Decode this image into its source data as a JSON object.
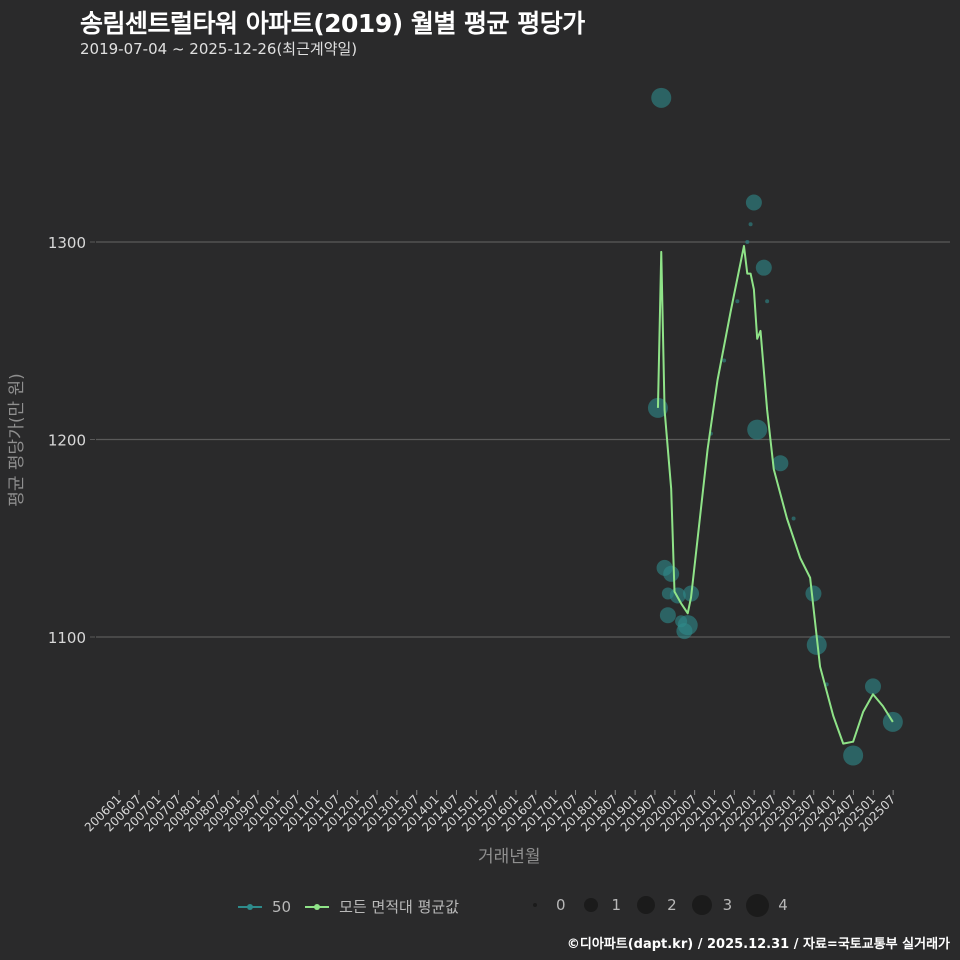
{
  "header": {
    "title": "송림센트럴타워 아파트(2019) 월별 평균 평당가",
    "subtitle": "2019-07-04 ~ 2025-12-26(최근계약일)"
  },
  "axes": {
    "ylabel": "평균 평당가(만 원)",
    "xlabel": "거래년월"
  },
  "legend": {
    "series": [
      {
        "label": "50",
        "color": "#2e8b8b"
      },
      {
        "label": "모든 면적대 평균값",
        "color": "#8fe388"
      }
    ],
    "sizes": [
      "0",
      "1",
      "2",
      "3",
      "4"
    ]
  },
  "footer": "©디아파트(dapt.kr) / 2025.12.31 / 자료=국토교통부 실거래가",
  "colors": {
    "background": "#2a2a2b",
    "grid": "#5a5a5a",
    "series_50": "#2e8b8b",
    "average_line": "#8fe388"
  },
  "chart_data": {
    "type": "scatter",
    "title": "송림센트럴타워 아파트(2019) 월별 평균 평당가",
    "subtitle": "2019-07-04 ~ 2025-12-26(최근계약일)",
    "xlabel": "거래년월",
    "ylabel": "평균 평당가(만 원)",
    "ylim": [
      1020,
      1385
    ],
    "yticks": [
      1100,
      1200,
      1300
    ],
    "grid": "horizontal",
    "legend_position": "bottom",
    "x_ticks": [
      "200601",
      "200607",
      "200701",
      "200707",
      "200801",
      "200807",
      "200901",
      "200907",
      "201001",
      "201007",
      "201101",
      "201107",
      "201201",
      "201207",
      "201301",
      "201307",
      "201401",
      "201407",
      "201501",
      "201507",
      "201601",
      "201607",
      "201701",
      "201707",
      "201801",
      "201807",
      "201901",
      "201907",
      "202001",
      "202007",
      "202101",
      "202107",
      "202201",
      "202207",
      "202301",
      "202307",
      "202401",
      "202407",
      "202501",
      "202507"
    ],
    "series": [
      {
        "name": "50",
        "kind": "bubble",
        "points": [
          {
            "x": "201907",
            "y": 1216,
            "size": 3
          },
          {
            "x": "201908",
            "y": 1373,
            "size": 3
          },
          {
            "x": "201909",
            "y": 1135,
            "size": 2
          },
          {
            "x": "201910",
            "y": 1122,
            "size": 1
          },
          {
            "x": "201910",
            "y": 1111,
            "size": 2
          },
          {
            "x": "201911",
            "y": 1132,
            "size": 2
          },
          {
            "x": "202001",
            "y": 1121,
            "size": 2
          },
          {
            "x": "202002",
            "y": 1108,
            "size": 1
          },
          {
            "x": "202003",
            "y": 1103,
            "size": 2
          },
          {
            "x": "202004",
            "y": 1106,
            "size": 3
          },
          {
            "x": "202005",
            "y": 1122,
            "size": 2
          },
          {
            "x": "202011",
            "y": 1203,
            "size": 0
          },
          {
            "x": "202103",
            "y": 1240,
            "size": 0
          },
          {
            "x": "202107",
            "y": 1270,
            "size": 0
          },
          {
            "x": "202110",
            "y": 1300,
            "size": 0
          },
          {
            "x": "202111",
            "y": 1309,
            "size": 0
          },
          {
            "x": "202112",
            "y": 1320,
            "size": 2
          },
          {
            "x": "202201",
            "y": 1205,
            "size": 3
          },
          {
            "x": "202203",
            "y": 1287,
            "size": 2
          },
          {
            "x": "202204",
            "y": 1270,
            "size": 0
          },
          {
            "x": "202208",
            "y": 1188,
            "size": 2
          },
          {
            "x": "202212",
            "y": 1160,
            "size": 0
          },
          {
            "x": "202306",
            "y": 1122,
            "size": 2
          },
          {
            "x": "202307",
            "y": 1096,
            "size": 3
          },
          {
            "x": "202310",
            "y": 1076,
            "size": 0
          },
          {
            "x": "202406",
            "y": 1040,
            "size": 3
          },
          {
            "x": "202412",
            "y": 1075,
            "size": 2
          },
          {
            "x": "202506",
            "y": 1057,
            "size": 3
          }
        ]
      },
      {
        "name": "모든 면적대 평균값",
        "kind": "line",
        "points": [
          {
            "x": "201907",
            "y": 1216
          },
          {
            "x": "201908",
            "y": 1295
          },
          {
            "x": "201909",
            "y": 1215
          },
          {
            "x": "201911",
            "y": 1175
          },
          {
            "x": "201912",
            "y": 1123
          },
          {
            "x": "202002",
            "y": 1117
          },
          {
            "x": "202004",
            "y": 1112
          },
          {
            "x": "202005",
            "y": 1120
          },
          {
            "x": "202007",
            "y": 1150
          },
          {
            "x": "202010",
            "y": 1195
          },
          {
            "x": "202101",
            "y": 1230
          },
          {
            "x": "202105",
            "y": 1265
          },
          {
            "x": "202109",
            "y": 1298
          },
          {
            "x": "202110",
            "y": 1284
          },
          {
            "x": "202111",
            "y": 1284
          },
          {
            "x": "202112",
            "y": 1276
          },
          {
            "x": "202201",
            "y": 1251
          },
          {
            "x": "202202",
            "y": 1255
          },
          {
            "x": "202204",
            "y": 1215
          },
          {
            "x": "202206",
            "y": 1185
          },
          {
            "x": "202210",
            "y": 1160
          },
          {
            "x": "202302",
            "y": 1140
          },
          {
            "x": "202305",
            "y": 1130
          },
          {
            "x": "202308",
            "y": 1085
          },
          {
            "x": "202312",
            "y": 1060
          },
          {
            "x": "202403",
            "y": 1046
          },
          {
            "x": "202406",
            "y": 1047
          },
          {
            "x": "202409",
            "y": 1062
          },
          {
            "x": "202412",
            "y": 1071
          },
          {
            "x": "202503",
            "y": 1065
          },
          {
            "x": "202506",
            "y": 1057
          }
        ]
      }
    ]
  }
}
